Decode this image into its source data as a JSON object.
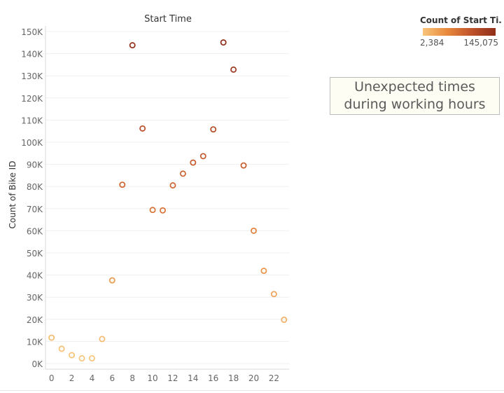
{
  "chart_data": {
    "type": "scatter",
    "title": "Start Time",
    "ylabel": "Count of Bike ID",
    "xlabel": "",
    "x_ticks": [
      "0",
      "2",
      "4",
      "6",
      "8",
      "10",
      "12",
      "14",
      "16",
      "18",
      "20",
      "22"
    ],
    "y_ticks": [
      {
        "v": 0,
        "label": "0K"
      },
      {
        "v": 10000,
        "label": "10K"
      },
      {
        "v": 20000,
        "label": "20K"
      },
      {
        "v": 30000,
        "label": "30K"
      },
      {
        "v": 40000,
        "label": "40K"
      },
      {
        "v": 50000,
        "label": "50K"
      },
      {
        "v": 60000,
        "label": "60K"
      },
      {
        "v": 70000,
        "label": "70K"
      },
      {
        "v": 80000,
        "label": "80K"
      },
      {
        "v": 90000,
        "label": "90K"
      },
      {
        "v": 100000,
        "label": "100K"
      },
      {
        "v": 110000,
        "label": "110K"
      },
      {
        "v": 120000,
        "label": "120K"
      },
      {
        "v": 130000,
        "label": "130K"
      },
      {
        "v": 140000,
        "label": "140K"
      },
      {
        "v": 150000,
        "label": "150K"
      }
    ],
    "xlim": [
      -0.6,
      23.5
    ],
    "ylim": [
      0,
      150000
    ],
    "grid": true,
    "points": [
      {
        "x": 0,
        "y": 11700
      },
      {
        "x": 1,
        "y": 6700
      },
      {
        "x": 2,
        "y": 3800
      },
      {
        "x": 3,
        "y": 2384
      },
      {
        "x": 4,
        "y": 2400
      },
      {
        "x": 5,
        "y": 11100
      },
      {
        "x": 6,
        "y": 37600
      },
      {
        "x": 7,
        "y": 80800
      },
      {
        "x": 8,
        "y": 143800
      },
      {
        "x": 9,
        "y": 106200
      },
      {
        "x": 10,
        "y": 69400
      },
      {
        "x": 11,
        "y": 69200
      },
      {
        "x": 12,
        "y": 80500
      },
      {
        "x": 13,
        "y": 85800
      },
      {
        "x": 14,
        "y": 90800
      },
      {
        "x": 15,
        "y": 93700
      },
      {
        "x": 16,
        "y": 105800
      },
      {
        "x": 17,
        "y": 145075
      },
      {
        "x": 18,
        "y": 132800
      },
      {
        "x": 19,
        "y": 89500
      },
      {
        "x": 20,
        "y": 60000
      },
      {
        "x": 21,
        "y": 41900
      },
      {
        "x": 22,
        "y": 31400
      },
      {
        "x": 23,
        "y": 19800
      }
    ],
    "color_legend": {
      "title": "Count of Start Ti..",
      "min": 2384,
      "max": 145075,
      "min_label": "2,384",
      "max_label": "145,075",
      "colors": [
        "#f8c57a",
        "#e8893c",
        "#c0532a",
        "#8f2f1a"
      ]
    }
  },
  "annotation": {
    "text": "Unexpected times during working hours"
  }
}
